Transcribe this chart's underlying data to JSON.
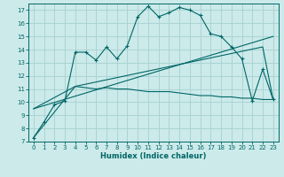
{
  "xlabel": "Humidex (Indice chaleur)",
  "background_color": "#cceaea",
  "grid_color": "#aad4d4",
  "line_color": "#006666",
  "xlim": [
    -0.5,
    23.5
  ],
  "ylim": [
    7,
    17.5
  ],
  "xticks": [
    0,
    1,
    2,
    3,
    4,
    5,
    6,
    7,
    8,
    9,
    10,
    11,
    12,
    13,
    14,
    15,
    16,
    17,
    18,
    19,
    20,
    21,
    22,
    23
  ],
  "yticks": [
    7,
    8,
    9,
    10,
    11,
    12,
    13,
    14,
    15,
    16,
    17
  ],
  "series1_x": [
    0,
    1,
    2,
    3,
    4,
    5,
    6,
    7,
    8,
    9,
    10,
    11,
    12,
    13,
    14,
    15,
    16,
    17,
    18,
    19,
    20,
    21,
    22,
    23
  ],
  "series1_y": [
    7.3,
    8.5,
    9.8,
    10.1,
    13.8,
    13.8,
    13.2,
    14.2,
    13.3,
    14.3,
    16.5,
    17.3,
    16.5,
    16.8,
    17.2,
    17.0,
    16.6,
    15.2,
    15.0,
    14.2,
    13.3,
    10.1,
    12.5,
    10.2
  ],
  "series2_x": [
    0,
    4,
    22,
    23
  ],
  "series2_y": [
    7.3,
    11.2,
    14.2,
    10.2
  ],
  "series3_x": [
    0,
    23
  ],
  "series3_y": [
    9.5,
    15.0
  ],
  "series4_x": [
    0,
    4,
    5,
    6,
    7,
    8,
    9,
    10,
    11,
    12,
    13,
    14,
    15,
    16,
    17,
    18,
    19,
    20,
    21,
    22,
    23
  ],
  "series4_y": [
    9.5,
    11.2,
    11.1,
    11.0,
    11.1,
    11.0,
    11.0,
    10.9,
    10.8,
    10.8,
    10.8,
    10.7,
    10.6,
    10.5,
    10.5,
    10.4,
    10.4,
    10.3,
    10.3,
    10.2,
    10.2
  ]
}
